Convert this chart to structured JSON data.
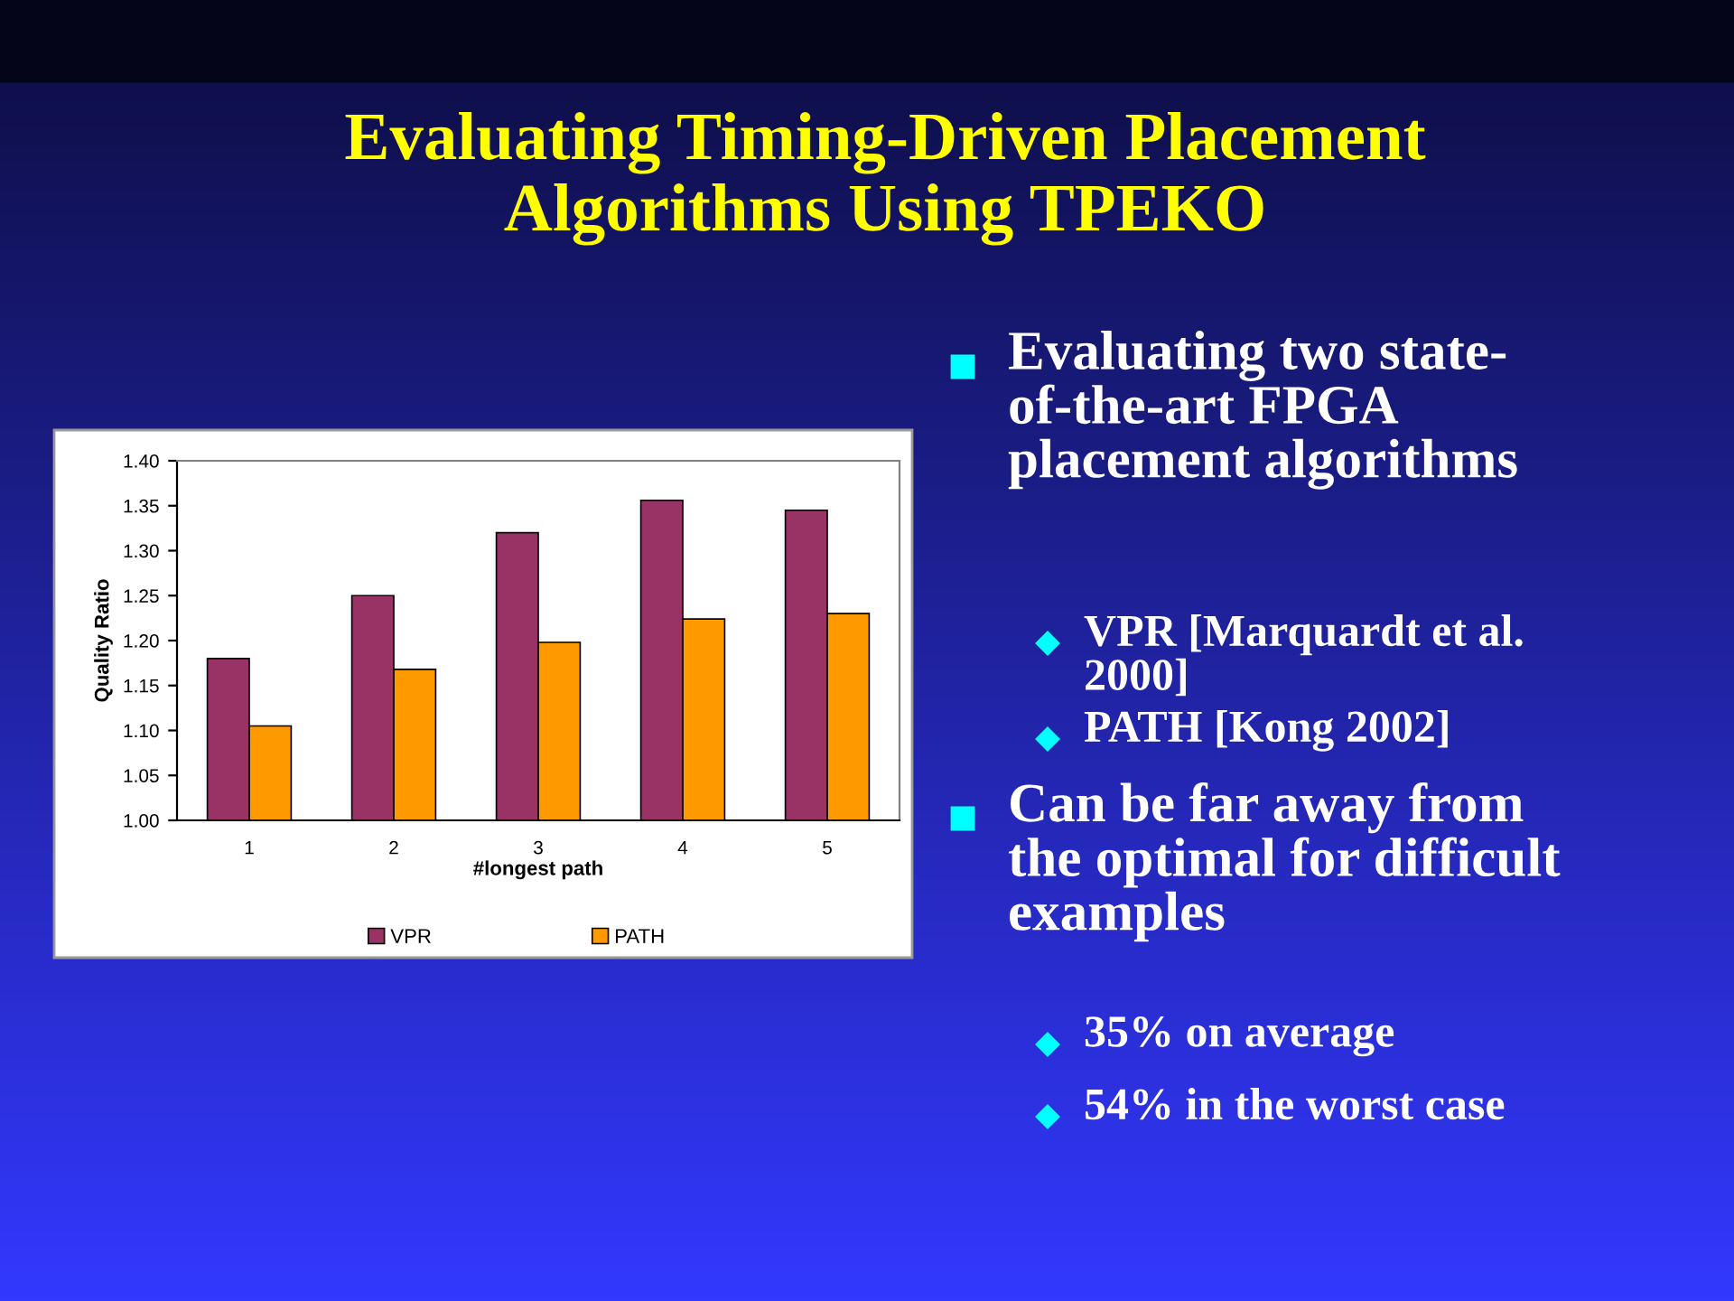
{
  "chart_data": {
    "type": "bar",
    "title": "Evaluating Timing-Driven Placement\nAlgorithms Using TPEKO",
    "categories": [
      "1",
      "2",
      "3",
      "4",
      "5"
    ],
    "series": [
      {
        "name": "VPR",
        "color": "#993366",
        "values": [
          1.18,
          1.25,
          1.32,
          1.356,
          1.345
        ]
      },
      {
        "name": "PATH",
        "color": "#ff9900",
        "values": [
          1.105,
          1.168,
          1.198,
          1.224,
          1.23
        ]
      }
    ],
    "xlabel": "#longest path",
    "ylabel": "Quality Ratio",
    "ylim": [
      1.0,
      1.4
    ],
    "yticks": [
      {
        "value": 1.0,
        "label": "1.00"
      },
      {
        "value": 1.05,
        "label": "1.05"
      },
      {
        "value": 1.1,
        "label": "1.10"
      },
      {
        "value": 1.15,
        "label": "1.15"
      },
      {
        "value": 1.2,
        "label": "1.20"
      },
      {
        "value": 1.25,
        "label": "1.25"
      },
      {
        "value": 1.3,
        "label": "1.30"
      },
      {
        "value": 1.35,
        "label": "1.35"
      },
      {
        "value": 1.4,
        "label": "1.40"
      }
    ],
    "grid": false,
    "legend": "bottom",
    "annotations": [
      "Evaluating two state-\nof-the-art FPGA\nplacement algorithms",
      "VPR [Marquardt et al.\n2000]",
      "PATH [Kong 2002]",
      "Can be far away from\nthe optimal for difficult\nexamples",
      "35% on average",
      "54% in the worst case"
    ]
  }
}
